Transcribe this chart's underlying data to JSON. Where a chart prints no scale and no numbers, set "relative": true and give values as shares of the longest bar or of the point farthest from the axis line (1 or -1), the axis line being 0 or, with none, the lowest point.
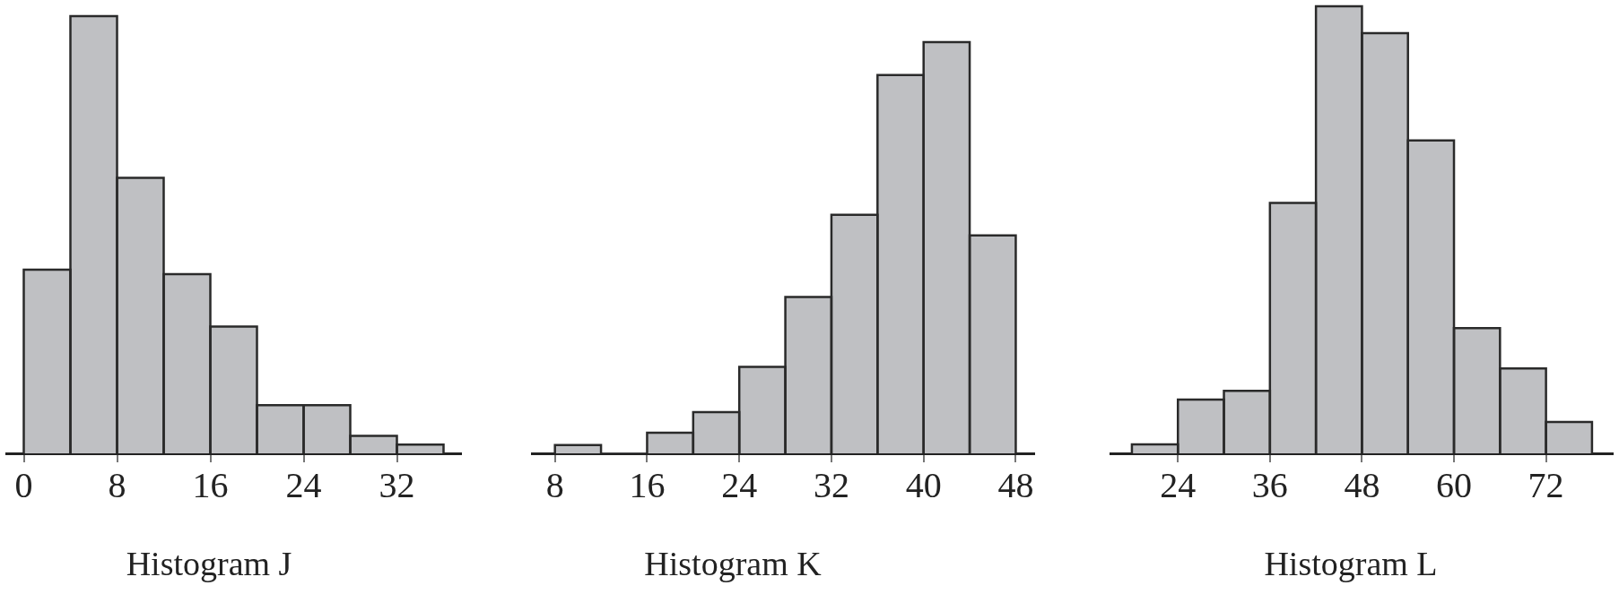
{
  "chart_data": [
    {
      "type": "bar",
      "title": "Histogram J",
      "x": [
        2,
        6,
        10,
        14,
        18,
        22,
        26,
        30,
        34
      ],
      "values": [
        0.42,
        1,
        0.63,
        0.41,
        0.29,
        0.11,
        0.11,
        0.04,
        0.02
      ],
      "color": "#bfc0c3",
      "relative": true,
      "xlim": [
        -1.5,
        37.5
      ],
      "xticks": [
        0,
        8,
        16,
        24,
        32
      ]
    },
    {
      "type": "bar",
      "title": "Histogram K",
      "x": [
        10,
        14,
        18,
        22,
        26,
        30,
        34,
        38,
        42,
        46
      ],
      "values": [
        0.02,
        0,
        0.05,
        0.1,
        0.21,
        0.38,
        0.58,
        0.92,
        1,
        0.53
      ],
      "color": "#bfc0c3",
      "relative": true,
      "xlim": [
        6,
        49.6
      ],
      "xticks": [
        8,
        16,
        24,
        32,
        40,
        48
      ]
    },
    {
      "type": "bar",
      "title": "Histogram L",
      "x": [
        21,
        27,
        33,
        39,
        45,
        51,
        57,
        63,
        69,
        75
      ],
      "values": [
        0.02,
        0.12,
        0.14,
        0.56,
        1,
        0.94,
        0.7,
        0.28,
        0.19,
        0.07
      ],
      "color": "#bfc0c3",
      "relative": true,
      "xlim": [
        15.2,
        80.7
      ],
      "xticks": [
        24,
        36,
        48,
        60,
        72
      ]
    }
  ]
}
